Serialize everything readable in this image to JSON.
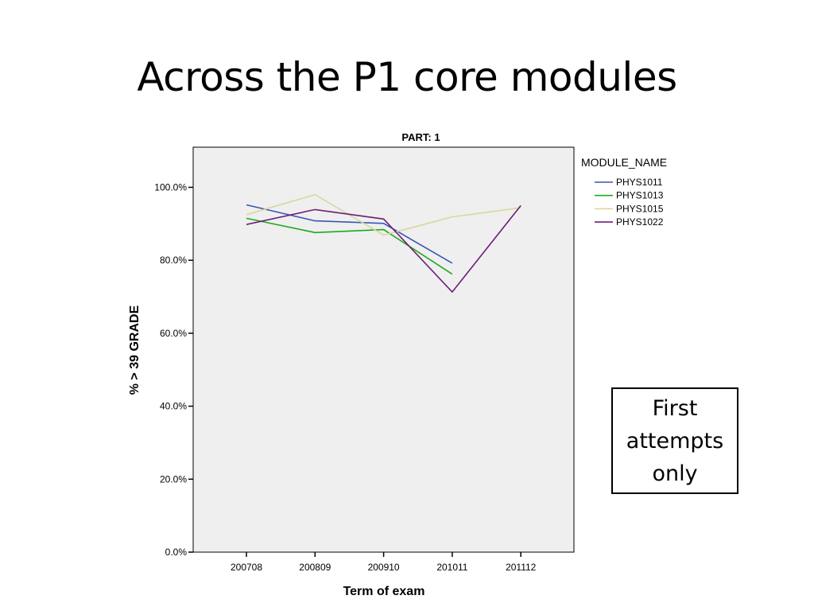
{
  "slide": {
    "title": "Across the P1 core modules",
    "note": "First\nattempts\nonly"
  },
  "colors": {
    "plot_background": "#efefef",
    "PHYS1011": "#3a57b5",
    "PHYS1013": "#1fa81f",
    "PHYS1015": "#d7d7a0",
    "PHYS1022": "#6e1f7a"
  },
  "chart_data": {
    "type": "line",
    "title": "PART: 1",
    "xlabel": "Term of exam",
    "ylabel": "% > 39 GRADE",
    "categories": [
      "200708",
      "200809",
      "200910",
      "201011",
      "201112"
    ],
    "y_ticks": [
      0,
      20,
      40,
      60,
      80,
      100
    ],
    "y_tick_labels": [
      "0.0%",
      "20.0%",
      "40.0%",
      "60.0%",
      "80.0%",
      "100.0%"
    ],
    "ylim": [
      0,
      111
    ],
    "grid": false,
    "legend_title": "MODULE_NAME",
    "legend_position": "right",
    "series": [
      {
        "name": "PHYS1011",
        "values": [
          95.2,
          90.8,
          90.1,
          79.2,
          null
        ]
      },
      {
        "name": "PHYS1013",
        "values": [
          91.5,
          87.6,
          88.4,
          76.2,
          null
        ]
      },
      {
        "name": "PHYS1015",
        "values": [
          92.5,
          98.0,
          86.9,
          91.9,
          94.4
        ]
      },
      {
        "name": "PHYS1022",
        "values": [
          89.8,
          93.9,
          91.3,
          71.3,
          95.0
        ]
      }
    ]
  }
}
